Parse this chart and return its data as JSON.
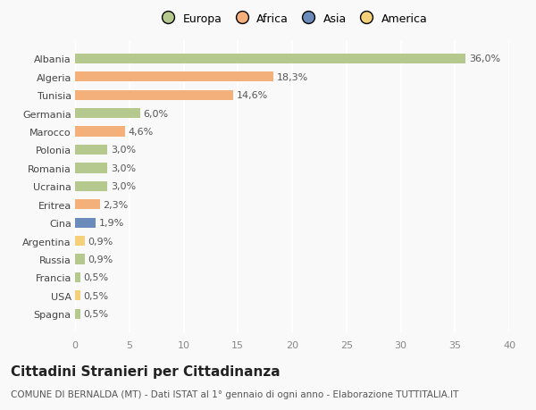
{
  "categories": [
    "Albania",
    "Algeria",
    "Tunisia",
    "Germania",
    "Marocco",
    "Polonia",
    "Romania",
    "Ucraina",
    "Eritrea",
    "Cina",
    "Argentina",
    "Russia",
    "Francia",
    "USA",
    "Spagna"
  ],
  "values": [
    36.0,
    18.3,
    14.6,
    6.0,
    4.6,
    3.0,
    3.0,
    3.0,
    2.3,
    1.9,
    0.9,
    0.9,
    0.5,
    0.5,
    0.5
  ],
  "labels": [
    "36,0%",
    "18,3%",
    "14,6%",
    "6,0%",
    "4,6%",
    "3,0%",
    "3,0%",
    "3,0%",
    "2,3%",
    "1,9%",
    "0,9%",
    "0,9%",
    "0,5%",
    "0,5%",
    "0,5%"
  ],
  "colors": [
    "#b5c98e",
    "#f4b07a",
    "#f4b07a",
    "#b5c98e",
    "#f4b07a",
    "#b5c98e",
    "#b5c98e",
    "#b5c98e",
    "#f4b07a",
    "#6b8cba",
    "#f5d07a",
    "#b5c98e",
    "#b5c98e",
    "#f5d07a",
    "#b5c98e"
  ],
  "legend_labels": [
    "Europa",
    "Africa",
    "Asia",
    "America"
  ],
  "legend_colors": [
    "#b5c98e",
    "#f4b07a",
    "#6b8cba",
    "#f5d07a"
  ],
  "xlim": [
    0,
    40
  ],
  "xticks": [
    0,
    5,
    10,
    15,
    20,
    25,
    30,
    35,
    40
  ],
  "title": "Cittadini Stranieri per Cittadinanza",
  "subtitle": "COMUNE DI BERNALDA (MT) - Dati ISTAT al 1° gennaio di ogni anno - Elaborazione TUTTITALIA.IT",
  "background_color": "#f9f9f9",
  "grid_color": "#ffffff",
  "bar_height": 0.55,
  "label_fontsize": 8,
  "tick_fontsize": 8,
  "title_fontsize": 11,
  "subtitle_fontsize": 7.5
}
